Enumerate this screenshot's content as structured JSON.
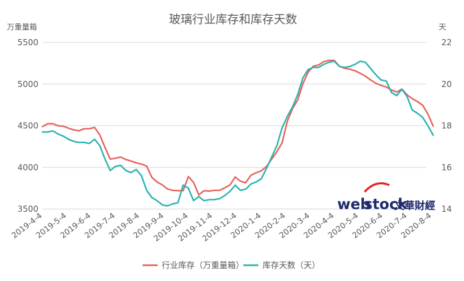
{
  "chart_data": {
    "type": "line",
    "title": "玻璃行业库存和库存天数",
    "ylabel_left": "万重量箱",
    "ylabel_right": "天",
    "ylim_left": [
      3500,
      5500
    ],
    "yticks_left": [
      3500,
      4000,
      4500,
      5000,
      5500
    ],
    "ylim_right": [
      14,
      22
    ],
    "yticks_right": [
      14,
      16,
      18,
      20,
      22
    ],
    "grid": "horizontal",
    "legend_position": "bottom",
    "x_tick_labels": [
      "2019-4-4",
      "2019-5-4",
      "2019-6-4",
      "2019-7-4",
      "2019-8-4",
      "2019-9-4",
      "2019-10-4",
      "2019-11-4",
      "2019-12-4",
      "2020-1-4",
      "2020-2-4",
      "2020-3-4",
      "2020-4-4",
      "2020-5-4",
      "2020-6-4",
      "2020-7-4",
      "2020-8-4"
    ],
    "series": [
      {
        "name": "行业库存（万重量箱）",
        "axis": "left",
        "color": "#e8615c",
        "values": [
          4490,
          4525,
          4525,
          4500,
          4495,
          4470,
          4450,
          4440,
          4465,
          4465,
          4480,
          4390,
          4240,
          4100,
          4110,
          4125,
          4095,
          4075,
          4055,
          4040,
          4015,
          3880,
          3825,
          3790,
          3740,
          3725,
          3720,
          3720,
          3890,
          3820,
          3670,
          3720,
          3715,
          3725,
          3725,
          3755,
          3790,
          3885,
          3835,
          3815,
          3905,
          3935,
          3960,
          4010,
          4100,
          4190,
          4295,
          4555,
          4705,
          4810,
          5005,
          5145,
          5215,
          5230,
          5270,
          5285,
          5285,
          5215,
          5190,
          5180,
          5160,
          5130,
          5095,
          5050,
          5010,
          4985,
          4965,
          4930,
          4905,
          4940,
          4870,
          4825,
          4790,
          4745,
          4640,
          4495
        ]
      },
      {
        "name": "库存天数（天）",
        "axis": "right",
        "color": "#2ab3ae",
        "values": [
          17.7,
          17.7,
          17.75,
          17.6,
          17.5,
          17.35,
          17.25,
          17.2,
          17.2,
          17.15,
          17.35,
          17.05,
          16.4,
          15.85,
          16.05,
          16.1,
          15.85,
          15.75,
          15.9,
          15.6,
          14.9,
          14.55,
          14.4,
          14.2,
          14.15,
          14.25,
          14.3,
          15.15,
          15.0,
          14.4,
          14.6,
          14.4,
          14.45,
          14.45,
          14.5,
          14.65,
          14.85,
          15.15,
          14.9,
          14.95,
          15.2,
          15.3,
          15.45,
          15.95,
          16.5,
          17.05,
          17.9,
          18.45,
          18.9,
          19.5,
          20.3,
          20.7,
          20.8,
          20.8,
          20.95,
          21.05,
          21.1,
          20.85,
          20.8,
          20.85,
          20.95,
          21.1,
          21.05,
          20.75,
          20.45,
          20.2,
          20.15,
          19.6,
          19.45,
          19.75,
          19.4,
          18.75,
          18.6,
          18.4,
          18.0,
          17.55
        ]
      }
    ]
  },
  "watermark": {
    "brand_prefix": "web",
    "brand_suffix": "stock",
    "chinese_name": "文華財經"
  }
}
